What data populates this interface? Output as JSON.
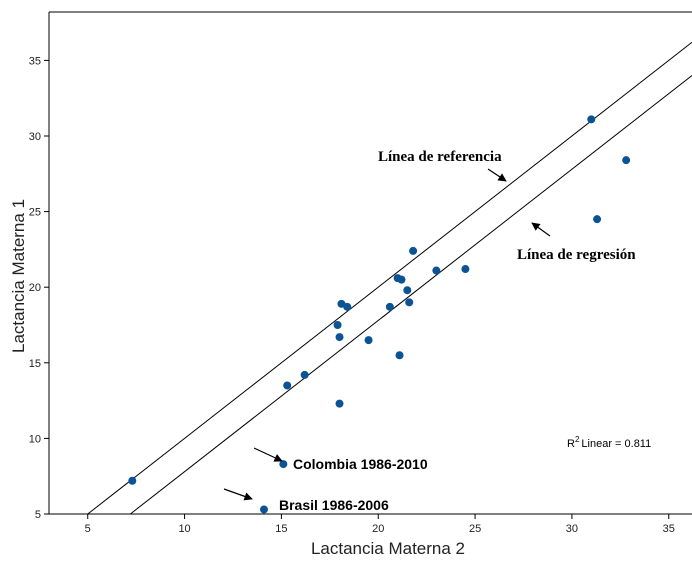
{
  "chart_data": {
    "type": "scatter",
    "xlabel": "Lactancia Materna 2",
    "ylabel": "Lactancia Materna 1",
    "xlim": [
      3,
      36.2
    ],
    "ylim": [
      5,
      38.2
    ],
    "xticks": [
      5,
      10,
      15,
      20,
      25,
      30,
      35
    ],
    "yticks": [
      5,
      10,
      15,
      20,
      25,
      30,
      35
    ],
    "points": [
      {
        "x": 7.3,
        "y": 7.2
      },
      {
        "x": 14.1,
        "y": 5.3
      },
      {
        "x": 15.1,
        "y": 8.3
      },
      {
        "x": 15.3,
        "y": 13.5
      },
      {
        "x": 16.2,
        "y": 14.2
      },
      {
        "x": 17.9,
        "y": 17.5
      },
      {
        "x": 18.0,
        "y": 16.7
      },
      {
        "x": 18.0,
        "y": 12.3
      },
      {
        "x": 18.1,
        "y": 18.9
      },
      {
        "x": 18.4,
        "y": 18.7
      },
      {
        "x": 19.5,
        "y": 16.5
      },
      {
        "x": 20.6,
        "y": 18.7
      },
      {
        "x": 21.0,
        "y": 20.6
      },
      {
        "x": 21.1,
        "y": 15.5
      },
      {
        "x": 21.2,
        "y": 20.5
      },
      {
        "x": 21.5,
        "y": 19.8
      },
      {
        "x": 21.6,
        "y": 19.0
      },
      {
        "x": 21.8,
        "y": 22.4
      },
      {
        "x": 23.0,
        "y": 21.1
      },
      {
        "x": 24.5,
        "y": 21.2
      },
      {
        "x": 31.0,
        "y": 31.1
      },
      {
        "x": 31.3,
        "y": 24.5
      },
      {
        "x": 32.8,
        "y": 28.4
      }
    ],
    "reference_line": {
      "label": "Línea de referencia",
      "slope": 1,
      "intercept": 0
    },
    "regression_line": {
      "label": "Línea de regresión",
      "slope": 1.0,
      "intercept": -2.2
    },
    "r2_label": "Linear = 0.811",
    "annotations": {
      "colombia": "Colombia 1986-2010",
      "brasil": "Brasil 1986-2006"
    },
    "grid": false
  }
}
